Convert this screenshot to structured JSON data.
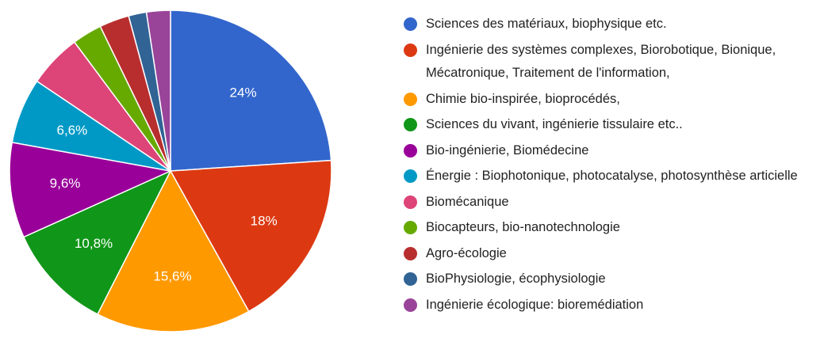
{
  "chart_data": {
    "type": "pie",
    "categories": [
      "Sciences des matériaux, biophysique etc.",
      "Ingénierie des systèmes complexes, Biorobotique, Bionique, Mécatronique, Traitement de l'information,",
      "Chimie bio-inspirée, bioprocédés,",
      "Sciences du vivant, ingénierie tissulaire etc..",
      "Bio-ingénierie, Biomédecine",
      "Énergie : Biophotonique, photocatalyse, photosynthèse articielle",
      "Biomécanique",
      "Biocapteurs, bio-nanotechnologie",
      "Agro-écologie",
      "BioPhysiologie, écophysiologie",
      "Ingénierie écologique: bioremédiation"
    ],
    "values": [
      24,
      18,
      15.6,
      10.8,
      9.6,
      6.6,
      5.4,
      3,
      3,
      1.8,
      2.4
    ],
    "value_labels": [
      "24%",
      "18%",
      "15,6%",
      "10,8%",
      "9,6%",
      "6,6%",
      null,
      null,
      null,
      null,
      null
    ],
    "colors": [
      "#3366cc",
      "#dc3912",
      "#ff9900",
      "#109618",
      "#990099",
      "#0099c6",
      "#dd4477",
      "#66aa00",
      "#b82e2e",
      "#316395",
      "#994499"
    ]
  }
}
